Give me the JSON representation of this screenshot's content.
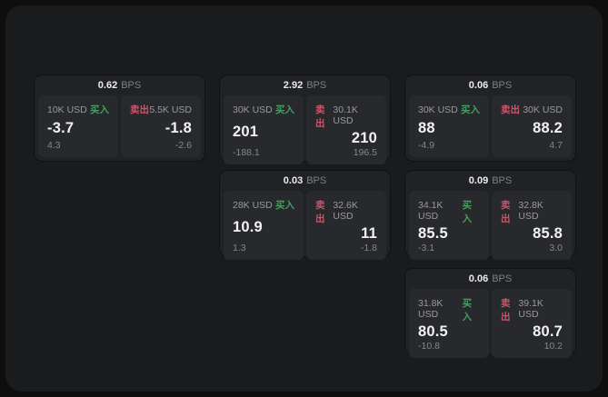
{
  "labels": {
    "bps": "BPS",
    "buy": "买入",
    "sell": "卖出"
  },
  "colors": {
    "buy": "#42a05c",
    "sell": "#c9566a",
    "surface": "#1a1b1d",
    "card": "#212226",
    "panel": "#28292c"
  },
  "cards": [
    {
      "bps": "0.62",
      "buy": {
        "amount": "10K USD",
        "price": "-3.7",
        "delta": "4.3"
      },
      "sell": {
        "amount": "5.5K USD",
        "price": "-1.8",
        "delta": "-2.6"
      }
    },
    {
      "bps": "2.92",
      "buy": {
        "amount": "30K USD",
        "price": "201",
        "delta": "-188.1"
      },
      "sell": {
        "amount": "30.1K USD",
        "price": "210",
        "delta": "196.5"
      }
    },
    {
      "bps": "0.06",
      "buy": {
        "amount": "30K USD",
        "price": "88",
        "delta": "-4.9"
      },
      "sell": {
        "amount": "30K USD",
        "price": "88.2",
        "delta": "4.7"
      }
    },
    {
      "bps": "0.03",
      "buy": {
        "amount": "28K USD",
        "price": "10.9",
        "delta": "1.3"
      },
      "sell": {
        "amount": "32.6K USD",
        "price": "11",
        "delta": "-1.8"
      }
    },
    {
      "bps": "0.09",
      "buy": {
        "amount": "34.1K USD",
        "price": "85.5",
        "delta": "-3.1"
      },
      "sell": {
        "amount": "32.8K USD",
        "price": "85.8",
        "delta": "3.0"
      }
    },
    {
      "bps": "0.06",
      "buy": {
        "amount": "31.8K USD",
        "price": "80.5",
        "delta": "-10.8"
      },
      "sell": {
        "amount": "39.1K USD",
        "price": "80.7",
        "delta": "10.2"
      }
    }
  ]
}
